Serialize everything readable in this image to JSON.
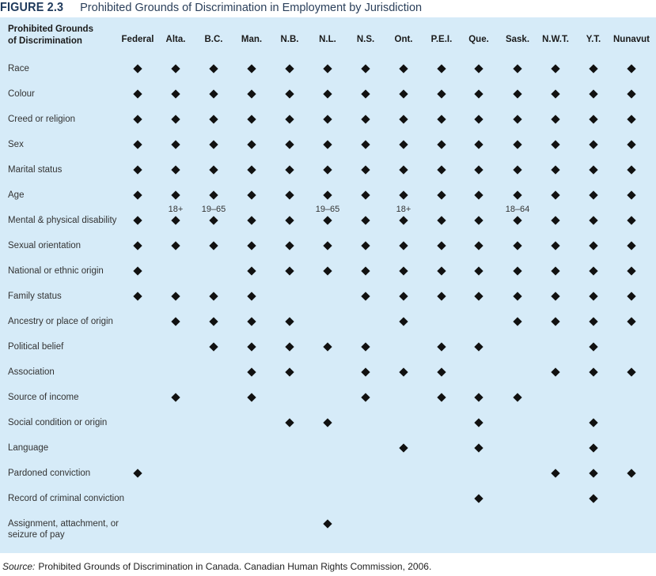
{
  "figure": {
    "label": "FIGURE 2.3",
    "title": "Prohibited Grounds of Discrimination in Employment by Jurisdiction"
  },
  "table": {
    "ground_header_line1": "Prohibited Grounds",
    "ground_header_line2": "of Discrimination",
    "jurisdictions": [
      "Federal",
      "Alta.",
      "B.C.",
      "Man.",
      "N.B.",
      "N.L.",
      "N.S.",
      "Ont.",
      "P.E.I.",
      "Que.",
      "Sask.",
      "N.W.T.",
      "Y.T.",
      "Nunavut"
    ],
    "rows": [
      {
        "ground": "Race",
        "cells": [
          1,
          1,
          1,
          1,
          1,
          1,
          1,
          1,
          1,
          1,
          1,
          1,
          1,
          1
        ]
      },
      {
        "ground": "Colour",
        "cells": [
          1,
          1,
          1,
          1,
          1,
          1,
          1,
          1,
          1,
          1,
          1,
          1,
          1,
          1
        ]
      },
      {
        "ground": "Creed or religion",
        "cells": [
          1,
          1,
          1,
          1,
          1,
          1,
          1,
          1,
          1,
          1,
          1,
          1,
          1,
          1
        ]
      },
      {
        "ground": "Sex",
        "cells": [
          1,
          1,
          1,
          1,
          1,
          1,
          1,
          1,
          1,
          1,
          1,
          1,
          1,
          1
        ]
      },
      {
        "ground": "Marital status",
        "cells": [
          1,
          1,
          1,
          1,
          1,
          1,
          1,
          1,
          1,
          1,
          1,
          1,
          1,
          1
        ]
      },
      {
        "ground": "Age",
        "cells": [
          1,
          1,
          1,
          1,
          1,
          1,
          1,
          1,
          1,
          1,
          1,
          1,
          1,
          1
        ],
        "notes": [
          "",
          "18+",
          "19–65",
          "",
          "",
          "19–65",
          "",
          "18+",
          "",
          "",
          "18–64",
          "",
          "",
          ""
        ]
      },
      {
        "ground": "Mental & physical disability",
        "cells": [
          1,
          1,
          1,
          1,
          1,
          1,
          1,
          1,
          1,
          1,
          1,
          1,
          1,
          1
        ]
      },
      {
        "ground": "Sexual orientation",
        "cells": [
          1,
          1,
          1,
          1,
          1,
          1,
          1,
          1,
          1,
          1,
          1,
          1,
          1,
          1
        ]
      },
      {
        "ground": "National or ethnic origin",
        "cells": [
          1,
          0,
          0,
          1,
          1,
          1,
          1,
          1,
          1,
          1,
          1,
          1,
          1,
          1
        ]
      },
      {
        "ground": "Family status",
        "cells": [
          1,
          1,
          1,
          1,
          0,
          0,
          1,
          1,
          1,
          1,
          1,
          1,
          1,
          1
        ]
      },
      {
        "ground": "Ancestry or place of origin",
        "cells": [
          0,
          1,
          1,
          1,
          1,
          0,
          0,
          1,
          0,
          0,
          1,
          1,
          1,
          1
        ]
      },
      {
        "ground": "Political belief",
        "cells": [
          0,
          0,
          1,
          1,
          1,
          1,
          1,
          0,
          1,
          1,
          0,
          0,
          1,
          0
        ]
      },
      {
        "ground": "Association",
        "cells": [
          0,
          0,
          0,
          1,
          1,
          0,
          1,
          1,
          1,
          0,
          0,
          1,
          1,
          1
        ]
      },
      {
        "ground": "Source of income",
        "cells": [
          0,
          1,
          0,
          1,
          0,
          0,
          1,
          0,
          1,
          1,
          1,
          0,
          0,
          0
        ]
      },
      {
        "ground": "Social condition or origin",
        "cells": [
          0,
          0,
          0,
          0,
          1,
          1,
          0,
          0,
          0,
          1,
          0,
          0,
          1,
          0
        ]
      },
      {
        "ground": "Language",
        "cells": [
          0,
          0,
          0,
          0,
          0,
          0,
          0,
          1,
          0,
          1,
          0,
          0,
          1,
          0
        ]
      },
      {
        "ground": "Pardoned conviction",
        "cells": [
          1,
          0,
          0,
          0,
          0,
          0,
          0,
          0,
          0,
          0,
          0,
          1,
          1,
          1
        ]
      },
      {
        "ground": "Record of criminal conviction",
        "cells": [
          0,
          0,
          0,
          0,
          0,
          0,
          0,
          0,
          0,
          1,
          0,
          0,
          1,
          0
        ]
      },
      {
        "ground": "Assignment, attachment, or seizure of pay",
        "cells": [
          0,
          0,
          0,
          0,
          0,
          1,
          0,
          0,
          0,
          0,
          0,
          0,
          0,
          0
        ]
      }
    ]
  },
  "source": {
    "label": "Source:",
    "text": "Prohibited Grounds of Discrimination in Canada. Canadian Human Rights Commission, 2006."
  }
}
